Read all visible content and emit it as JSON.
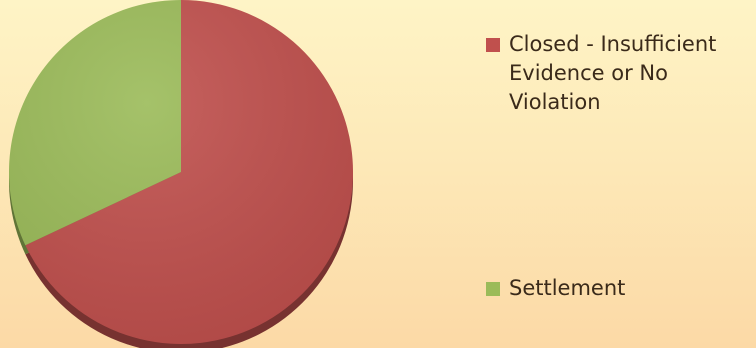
{
  "chart_data": {
    "type": "pie",
    "title": "",
    "labels": [
      "Closed - Insufficient Evidence or No Violation",
      "Settlement"
    ],
    "values": [
      68,
      32
    ],
    "colors": [
      "#c0504d",
      "#9bbb59"
    ],
    "start_angle_degrees": 0,
    "direction": "clockwise",
    "legend_position": "right"
  },
  "legend": {
    "items": [
      {
        "label": "Closed - Insufficient Evidence or No Violation",
        "color": "#c0504d"
      },
      {
        "label": "Settlement",
        "color": "#9bbb59"
      }
    ]
  }
}
